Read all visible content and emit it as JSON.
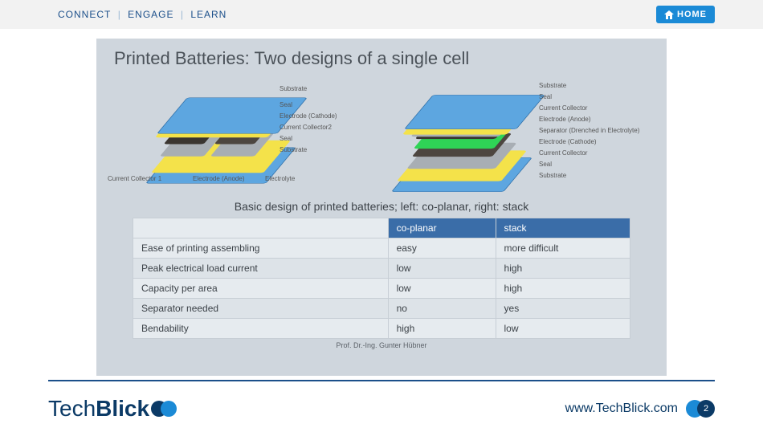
{
  "topbar": {
    "connect": "CONNECT",
    "engage": "ENGAGE",
    "learn": "LEARN",
    "home": "HOME"
  },
  "slide": {
    "title": "Printed Batteries: Two designs of a single cell",
    "caption": "Basic design of printed batteries; left: co-planar, right: stack",
    "credit": "Prof. Dr.-Ing. Gunter Hübner"
  },
  "left_diagram": {
    "labels": {
      "substrate_top": "Substrate",
      "seal_top": "Seal",
      "electrode_cathode": "Electrode (Cathode)",
      "current_collector2": "Current Collector2",
      "seal_bottom": "Seal",
      "substrate_bottom": "Substrate",
      "current_collector1": "Current Collector 1",
      "electrode_anode": "Electrode (Anode)",
      "electrolyte": "Electrolyte"
    }
  },
  "right_diagram": {
    "labels": {
      "substrate_top": "Substrate",
      "seal_top": "Seal",
      "current_collector_top": "Current Collector",
      "electrode_anode": "Electrode (Anode)",
      "separator": "Separator (Drenched in Electrolyte)",
      "electrode_cathode": "Electrode (Cathode)",
      "current_collector_bottom": "Current Collector",
      "seal_bottom": "Seal",
      "substrate_bottom": "Substrate"
    }
  },
  "layer_colors": {
    "substrate": "#5da6e0",
    "seal": "#f4e24a",
    "electrode_dark": "#3a3530",
    "electrode_mid": "#4d4640",
    "current_collector": "#a8aeb4",
    "electrolyte": "#c9e59a",
    "separator": "#2fd456",
    "outline": "#6a6f74"
  },
  "table": {
    "header_bg": "#3a6da8",
    "columns": [
      "",
      "co-planar",
      "stack"
    ],
    "rows": [
      [
        "Ease of printing assembling",
        "easy",
        "more difficult"
      ],
      [
        "Peak electrical load current",
        "low",
        "high"
      ],
      [
        "Capacity per area",
        "low",
        "high"
      ],
      [
        "Separator needed",
        "no",
        "yes"
      ],
      [
        "Bendability",
        "high",
        "low"
      ]
    ]
  },
  "footer": {
    "logo_a": "Tech",
    "logo_b": "Blick",
    "url": "www.TechBlick.com",
    "page": "2"
  }
}
